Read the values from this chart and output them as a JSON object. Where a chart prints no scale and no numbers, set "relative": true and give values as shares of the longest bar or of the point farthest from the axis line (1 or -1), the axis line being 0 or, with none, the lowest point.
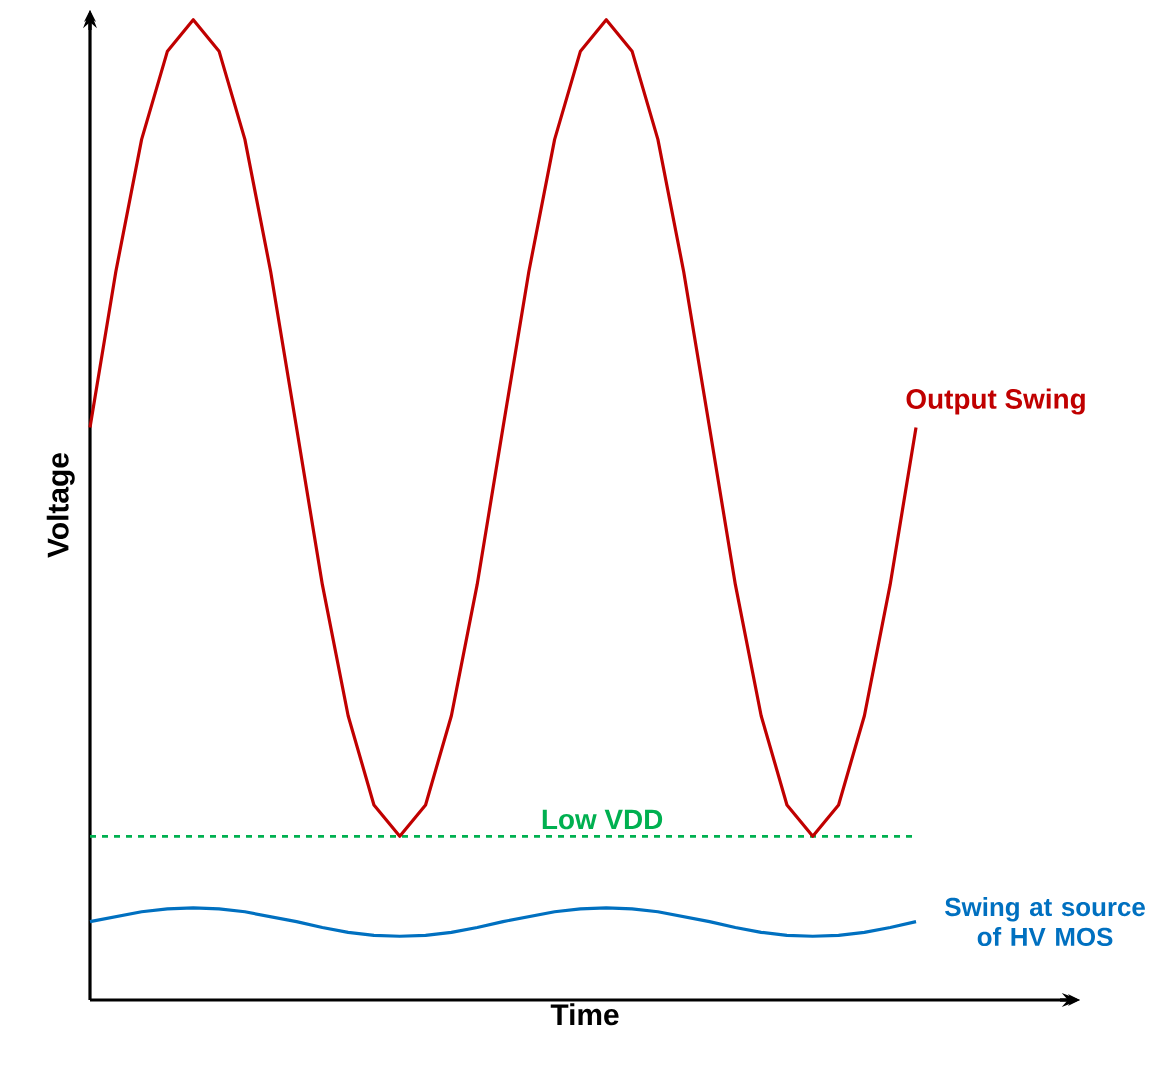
{
  "chart_data": {
    "type": "line",
    "relative": true,
    "xlabel": "Time",
    "ylabel": "Voltage",
    "categories": [
      null,
      null,
      null,
      null,
      null,
      null,
      null,
      null,
      null,
      null,
      null,
      null,
      null,
      null,
      null,
      null,
      null,
      null,
      null,
      null,
      null,
      null,
      null,
      null,
      null,
      null,
      null,
      null,
      null,
      null,
      null,
      null,
      null
    ],
    "series": [
      {
        "name": "Output Swing",
        "color": "#c00000",
        "values": [
          0.584,
          0.743,
          0.878,
          0.968,
          1.0,
          0.968,
          0.878,
          0.743,
          0.584,
          0.424,
          0.29,
          0.199,
          0.167,
          0.199,
          0.29,
          0.424,
          0.584,
          0.743,
          0.878,
          0.968,
          1.0,
          0.968,
          0.878,
          0.743,
          0.584,
          0.424,
          0.29,
          0.199,
          0.167,
          0.199,
          0.29,
          0.424,
          0.584
        ]
      },
      {
        "name": "Swing at source of HV MOS",
        "color": "#0070c0",
        "values": [
          0.08,
          0.085,
          0.09,
          0.093,
          0.094,
          0.093,
          0.09,
          0.085,
          0.08,
          0.074,
          0.069,
          0.066,
          0.065,
          0.066,
          0.069,
          0.074,
          0.08,
          0.085,
          0.09,
          0.093,
          0.094,
          0.093,
          0.09,
          0.085,
          0.08,
          0.074,
          0.069,
          0.066,
          0.065,
          0.066,
          0.069,
          0.074,
          0.08
        ]
      }
    ],
    "ref_lines": [
      {
        "axis": "y",
        "value": 0.167,
        "label": "Low VDD",
        "color": "#00b050",
        "line_style": "dashed"
      }
    ]
  }
}
